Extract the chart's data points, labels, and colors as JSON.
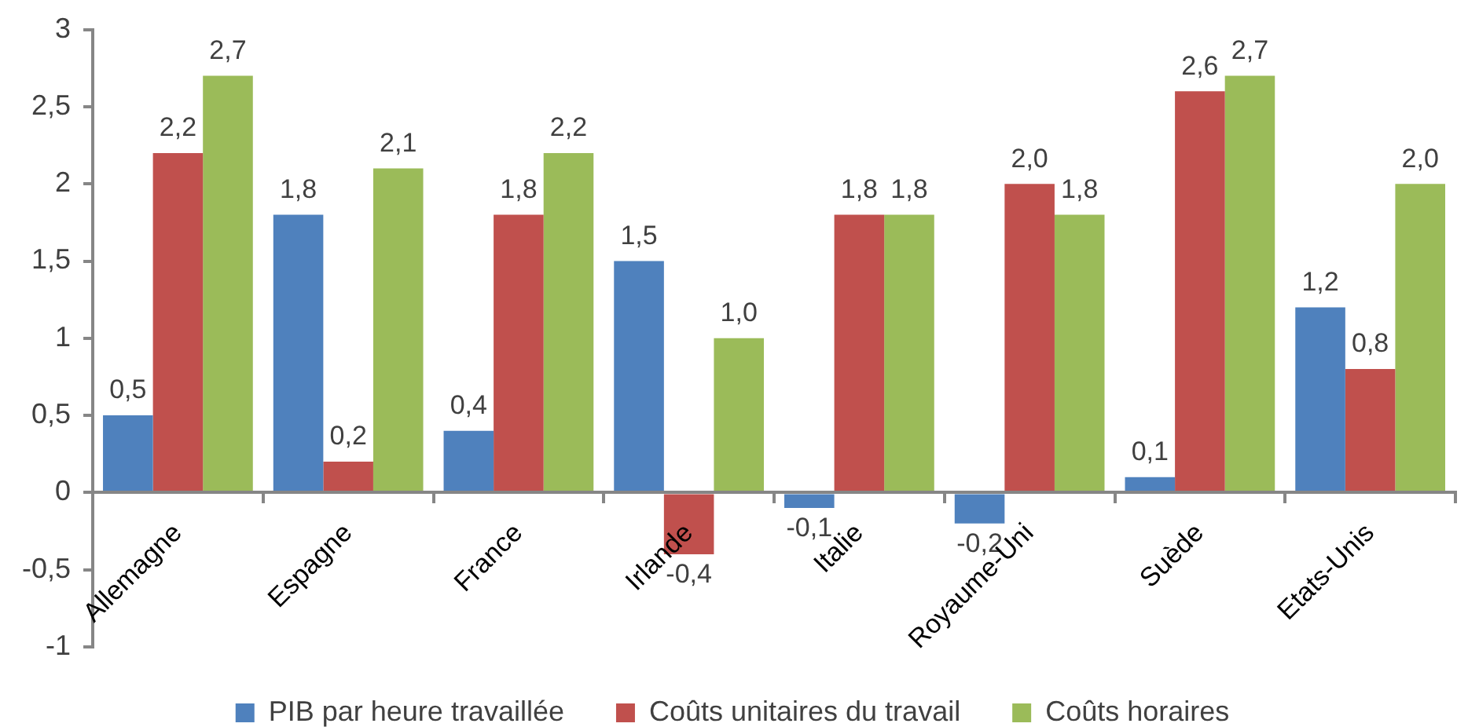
{
  "chart_data": {
    "type": "bar",
    "categories": [
      "Allemagne",
      "Espagne",
      "France",
      "Irlande",
      "Italie",
      "Royaume-Uni",
      "Suède",
      "Etats-Unis"
    ],
    "series": [
      {
        "name": "PIB par heure travaillée",
        "color": "#4f81bd",
        "values": [
          0.5,
          1.8,
          0.4,
          1.5,
          -0.1,
          -0.2,
          0.1,
          1.2
        ],
        "value_labels": [
          "0,5",
          "1,8",
          "0,4",
          "1,5",
          "-0,1",
          "-0,2",
          "0,1",
          "1,2"
        ]
      },
      {
        "name": "Coûts unitaires du travail",
        "color": "#c0504d",
        "values": [
          2.2,
          0.2,
          1.8,
          -0.4,
          1.8,
          2.0,
          2.6,
          0.8
        ],
        "value_labels": [
          "2,2",
          "0,2",
          "1,8",
          "-0,4",
          "1,8",
          "2,0",
          "2,6",
          "0,8"
        ]
      },
      {
        "name": "Coûts horaires",
        "color": "#9bbb59",
        "values": [
          2.7,
          2.1,
          2.2,
          1.0,
          1.8,
          1.8,
          2.7,
          2.0
        ],
        "value_labels": [
          "2,7",
          "2,1",
          "2,2",
          "1,0",
          "1,8",
          "1,8",
          "2,7",
          "2,0"
        ]
      }
    ],
    "ylim": [
      -1,
      3
    ],
    "yticks": [
      -1,
      {
        "value": -0.5,
        "label": "-0,5"
      },
      0,
      {
        "value": 0.5,
        "label": "0,5"
      },
      1,
      {
        "value": 1.5,
        "label": "1,5"
      },
      2,
      {
        "value": 2.5,
        "label": "2,5"
      },
      3
    ],
    "grid": false,
    "legend": "bottom"
  }
}
